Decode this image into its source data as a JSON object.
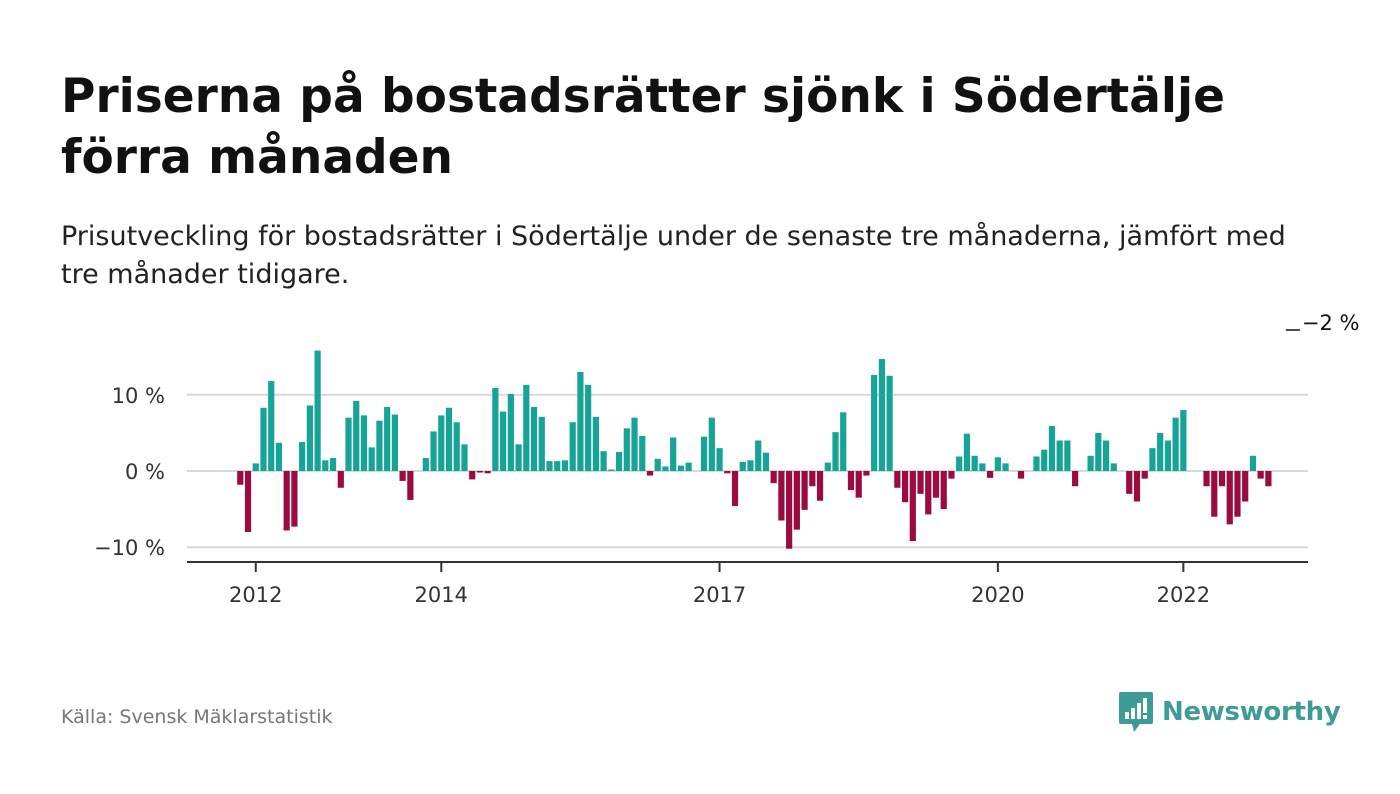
{
  "title": "Priserna på bostadsrätter sjönk i Södertälje förra månaden",
  "subtitle": "Prisutveckling för bostadsrätter i Södertälje under de senaste tre månaderna, jämfört med tre månader tidigare.",
  "source": "Källa: Svensk Mäklarstatistik",
  "brand": {
    "name": "Newsworthy",
    "icon": "newsworthy-logo-icon",
    "color": "#3f9b95"
  },
  "colors": {
    "positive": "#16a398",
    "negative": "#9b0b3f",
    "grid": "#d9d9d9",
    "axis": "#333333"
  },
  "chart_data": {
    "type": "bar",
    "x_unit": "month",
    "start": "2011-11",
    "x_ticks": [
      "2012",
      "2014",
      "2017",
      "2020",
      "2022"
    ],
    "y_ticks": [
      "10 %",
      "0 %",
      "−10 %"
    ],
    "y_tick_values": [
      10,
      0,
      -10
    ],
    "ylim": [
      -11.8,
      16.5
    ],
    "grid": true,
    "annotation": {
      "text": "−2 %",
      "month": "2023-02"
    },
    "values": [
      -1.8,
      -8.0,
      1.0,
      8.3,
      11.8,
      3.7,
      -7.8,
      -7.3,
      3.8,
      8.6,
      15.8,
      1.4,
      1.7,
      -2.2,
      7.0,
      9.2,
      7.3,
      3.1,
      6.6,
      8.4,
      7.4,
      -1.3,
      -3.8,
      0.0,
      1.7,
      5.2,
      7.3,
      8.3,
      6.4,
      3.5,
      -1.1,
      -0.2,
      -0.3,
      10.9,
      7.8,
      10.1,
      3.5,
      11.3,
      8.4,
      7.1,
      1.3,
      1.3,
      1.4,
      6.4,
      13.0,
      11.3,
      7.1,
      2.6,
      0.2,
      2.5,
      5.6,
      7.0,
      4.6,
      -0.6,
      1.6,
      0.6,
      4.4,
      0.7,
      1.1,
      0.0,
      4.5,
      7.0,
      3.0,
      -0.3,
      -4.6,
      1.2,
      1.4,
      4.0,
      2.4,
      -1.6,
      -6.5,
      -10.2,
      -7.7,
      -5.1,
      -2.0,
      -3.9,
      1.1,
      5.1,
      7.7,
      -2.5,
      -3.5,
      -0.6,
      12.6,
      14.7,
      12.5,
      -2.2,
      -4.1,
      -9.2,
      -3.0,
      -5.7,
      -3.5,
      -5.0,
      -1.0,
      1.9,
      4.9,
      2.0,
      1.0,
      -0.9,
      1.8,
      1.0,
      0.0,
      -1.0,
      0.0,
      1.9,
      2.8,
      5.9,
      4.0,
      4.0,
      -2.0,
      0.0,
      2.0,
      5.0,
      4.0,
      1.0,
      0.0,
      -3.0,
      -4.0,
      -1.0,
      3.0,
      5.0,
      4.0,
      7.0,
      8.0,
      0.0,
      0.0,
      -2.0,
      -6.0,
      -2.0,
      -7.0,
      -6.0,
      -4.0,
      2.0,
      -1.0,
      -2.0
    ]
  }
}
